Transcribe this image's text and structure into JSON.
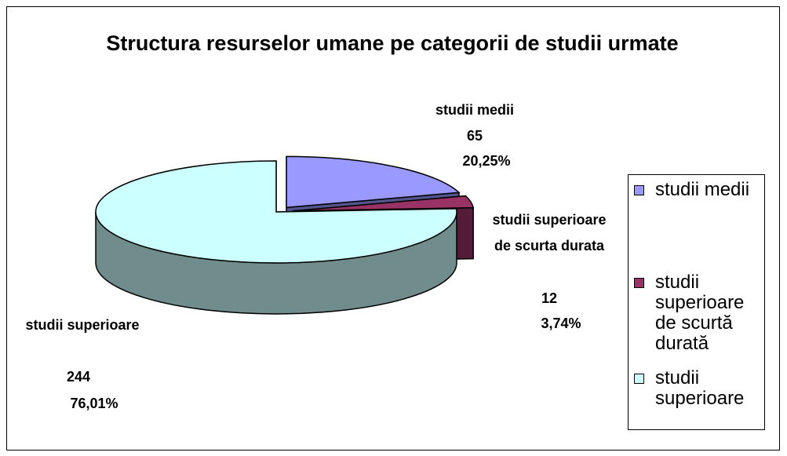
{
  "chart_data": {
    "type": "pie",
    "three_d": true,
    "title": "Structura resurselor umane pe categorii de studii urmate",
    "categories": [
      "studii medii",
      "studii superioare de scurtă durată",
      "studii superioare"
    ],
    "data_label_names": [
      "studii medii",
      "studii superioare de scurta durata",
      "studii superioare"
    ],
    "values": [
      65,
      12,
      244
    ],
    "percent_values": [
      20.25,
      3.74,
      76.01
    ],
    "percent_labels": [
      "20,25%",
      "3,74%",
      "76,01%"
    ],
    "colors": [
      "#9999ff",
      "#993366",
      "#ccffff"
    ],
    "exploded": [
      true,
      true,
      false
    ],
    "legend": "right"
  }
}
